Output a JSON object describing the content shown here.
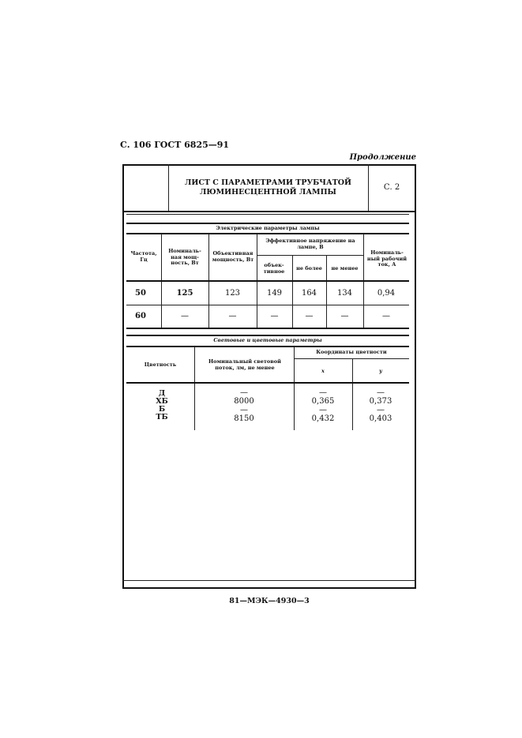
{
  "page_header": "С. 106 ГОСТ 6825—91",
  "continuation": "Продолжение",
  "sheet": {
    "title_line1": "ЛИСТ С ПАРАМЕТРАМИ ТРУБЧАТОЙ",
    "title_line2": "ЛЮМИНЕСЦЕНТНОЙ ЛАМПЫ",
    "page": "С. 2"
  },
  "electrical": {
    "title": "Электрические параметры лампы",
    "headers": {
      "frequency": "Частота, Гц",
      "nominal_power": "Номиналь-ная мощ-ность, Вт",
      "objective_power": "Объективная мощность, Вт",
      "voltage": "Эффективное напряжение на лампе, В",
      "voltage_objective": "объек-тивное",
      "voltage_max": "не более",
      "voltage_min": "не менее",
      "current": "Номиналь-ный рабочий ток, А"
    },
    "rows": [
      [
        "50",
        "125",
        "123",
        "149",
        "164",
        "134",
        "0,94"
      ],
      [
        "60",
        "—",
        "—",
        "—",
        "—",
        "—",
        "—"
      ]
    ]
  },
  "light": {
    "title": "Световые и цветовые параметры",
    "headers": {
      "color": "Цветность",
      "flux": "Номинальный световой поток, лм, не менее",
      "coords": "Координаты цветности",
      "x": "x",
      "y": "y"
    },
    "rows": [
      [
        "Д",
        "—",
        "—",
        "—"
      ],
      [
        "ХБ",
        "8000",
        "0,365",
        "0,373"
      ],
      [
        "Б",
        "—",
        "—",
        "—"
      ],
      [
        "ТБ",
        "8150",
        "0,432",
        "0,403"
      ]
    ]
  },
  "footer": "81—МЭК—4930—3"
}
